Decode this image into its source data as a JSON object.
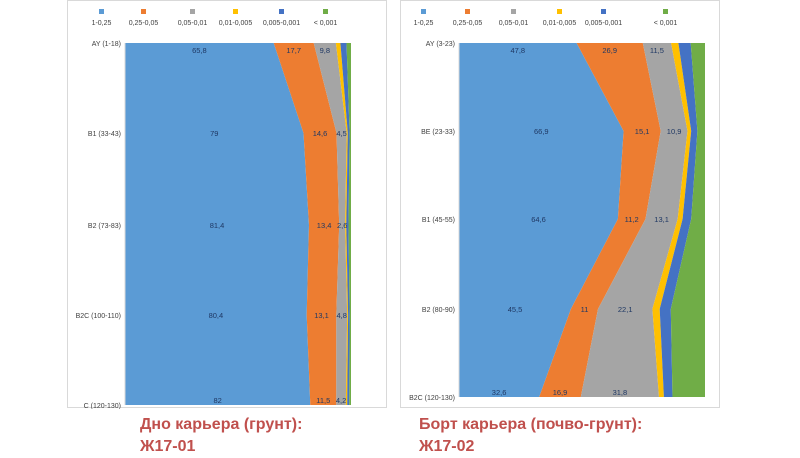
{
  "colors": [
    "#5b9bd5",
    "#ed7d31",
    "#a5a5a5",
    "#ffc000",
    "#4472c4",
    "#70ad47"
  ],
  "label_color": "#1f3864",
  "caption_color": "#c0504d",
  "chart_data": [
    {
      "type": "area",
      "orientation": "vertical-stacked-percent",
      "title": "",
      "xlabel": "",
      "ylabel": "",
      "legend_position": "top",
      "series_names": [
        "1-0,25",
        "0,25-0,05",
        "0,05-0,01",
        "0,01-0,005",
        "0,005-0,001",
        "< 0,001"
      ],
      "categories": [
        "AY (1-18)",
        "B1 (33-43)",
        "B2 (73-83)",
        "B2C (100-110)",
        "C (120-130)"
      ],
      "rows": [
        [
          65.8,
          17.7,
          9.8,
          2.0,
          2.7,
          2.0
        ],
        [
          79,
          14.6,
          4.5,
          0.5,
          0.8,
          0.6
        ],
        [
          81.4,
          13.4,
          2.6,
          0.5,
          1.0,
          1.1
        ],
        [
          80.4,
          13.1,
          4.8,
          0.4,
          0.7,
          0.6
        ],
        [
          82,
          11.5,
          4.2,
          0.6,
          0.9,
          0.8
        ]
      ],
      "labels": [
        [
          "65,8",
          "17,7",
          "9,8"
        ],
        [
          "79",
          "14,6",
          "4,5"
        ],
        [
          "81,4",
          "13,4",
          "2,6"
        ],
        [
          "80,4",
          "13,1",
          "4,8"
        ],
        [
          "82",
          "11,5",
          "4,2"
        ]
      ],
      "caption_lines": [
        "Дно карьера (грунт):",
        "Ж17-01"
      ]
    },
    {
      "type": "area",
      "orientation": "vertical-stacked-percent",
      "title": "",
      "xlabel": "",
      "ylabel": "",
      "legend_position": "top",
      "series_names": [
        "1-0,25",
        "0,25-0,05",
        "0,05-0,01",
        "0,01-0,005",
        "0,005-0,001",
        "< 0,001"
      ],
      "categories": [
        "AY (3-23)",
        "BE (23-33)",
        "B1 (45-55)",
        "B2 (80-90)",
        "B2C (120-130)"
      ],
      "rows": [
        [
          47.8,
          26.9,
          11.5,
          3.0,
          5.0,
          5.8
        ],
        [
          66.9,
          15.1,
          10.9,
          1.5,
          2.5,
          3.1
        ],
        [
          64.6,
          11.2,
          13.1,
          2.0,
          3.5,
          5.6
        ],
        [
          45.5,
          11,
          22.1,
          3.0,
          4.5,
          13.9
        ],
        [
          32.6,
          16.9,
          31.8,
          2.0,
          3.5,
          13.2
        ]
      ],
      "labels": [
        [
          "47,8",
          "26,9",
          "11,5"
        ],
        [
          "66,9",
          "15,1",
          "10,9"
        ],
        [
          "64,6",
          "11,2",
          "13,1"
        ],
        [
          "45,5",
          "11",
          "22,1"
        ],
        [
          "32,6",
          "16,9",
          "31,8"
        ]
      ],
      "caption_lines": [
        "Борт карьера (почво-грунт):",
        "Ж17-02"
      ]
    }
  ]
}
